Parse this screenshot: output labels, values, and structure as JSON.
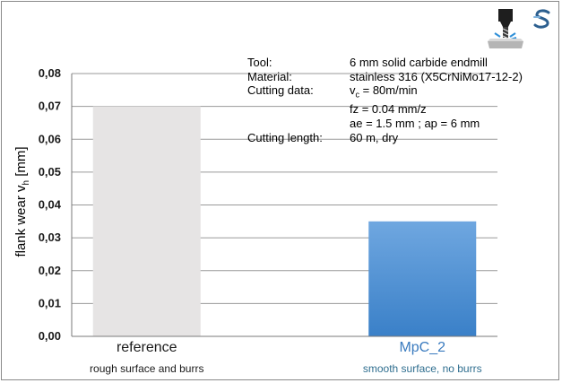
{
  "chart_data": {
    "type": "bar",
    "categories": [
      "reference",
      "MpC_2"
    ],
    "category_notes": [
      "rough surface and burrs",
      "smooth surface, no burrs"
    ],
    "values": [
      0.07,
      0.035
    ],
    "ylabel": "flank wear v_h [mm]",
    "ylabel_main": "flank wear v",
    "ylabel_sub": "h",
    "ylabel_unit": " [mm]",
    "ylim": [
      0,
      0.08
    ],
    "yticks": [
      "0,00",
      "0,01",
      "0,02",
      "0,03",
      "0,04",
      "0,05",
      "0,06",
      "0,07",
      "0,08"
    ],
    "grid": true,
    "legend": "none",
    "colors": {
      "reference": "#e6e4e4",
      "MpC_2_top": "#6fa7e0",
      "MpC_2_bottom": "#3a80c8",
      "MpC_2_label": "#3a7bbf",
      "MpC_2_note": "#2f6e8f",
      "grid": "#9a9a9a"
    }
  },
  "info": {
    "rows": [
      {
        "key": "Tool:",
        "value": "6 mm solid carbide endmill"
      },
      {
        "key": "Material:",
        "value": "stainless 316 (X5CrNiMo17-12-2)"
      },
      {
        "key": "Cutting data:",
        "value": "v_c = 80m/min",
        "value_main": "v",
        "value_sub": "c",
        "value_rest": " = 80m/min"
      },
      {
        "key": "",
        "value": "fz = 0.04 mm/z"
      },
      {
        "key": "",
        "value": "ae = 1.5 mm ; ap = 6 mm"
      },
      {
        "key": "Cutting length:",
        "value": "60 m, dry"
      }
    ]
  },
  "icons": {
    "machining": "milling-tool-icon",
    "brand": "company-logo-icon"
  }
}
